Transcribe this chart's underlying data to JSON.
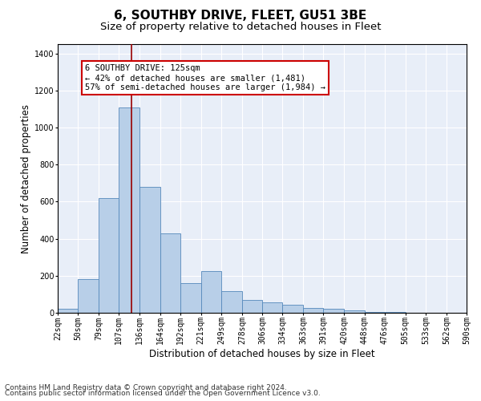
{
  "title1": "6, SOUTHBY DRIVE, FLEET, GU51 3BE",
  "title2": "Size of property relative to detached houses in Fleet",
  "xlabel": "Distribution of detached houses by size in Fleet",
  "ylabel": "Number of detached properties",
  "footnote1": "Contains HM Land Registry data © Crown copyright and database right 2024.",
  "footnote2": "Contains public sector information licensed under the Open Government Licence v3.0.",
  "annotation_line1": "6 SOUTHBY DRIVE: 125sqm",
  "annotation_line2": "← 42% of detached houses are smaller (1,481)",
  "annotation_line3": "57% of semi-detached houses are larger (1,984) →",
  "bar_heights": [
    20,
    180,
    620,
    1110,
    680,
    430,
    160,
    225,
    115,
    70,
    55,
    45,
    25,
    20,
    15,
    5,
    5,
    2,
    1,
    0
  ],
  "bin_edges": [
    22,
    50,
    79,
    107,
    136,
    164,
    192,
    221,
    249,
    278,
    306,
    334,
    363,
    391,
    420,
    448,
    476,
    505,
    533,
    562,
    590
  ],
  "bar_color": "#b8cfe8",
  "bar_edge_color": "#5588bb",
  "red_line_x": 125,
  "ylim": [
    0,
    1450
  ],
  "xlim": [
    22,
    590
  ],
  "yticks": [
    0,
    200,
    400,
    600,
    800,
    1000,
    1200,
    1400
  ],
  "xtick_labels": [
    "22sqm",
    "50sqm",
    "79sqm",
    "107sqm",
    "136sqm",
    "164sqm",
    "192sqm",
    "221sqm",
    "249sqm",
    "278sqm",
    "306sqm",
    "334sqm",
    "363sqm",
    "391sqm",
    "420sqm",
    "448sqm",
    "476sqm",
    "505sqm",
    "533sqm",
    "562sqm",
    "590sqm"
  ],
  "background_color": "#e8eef8",
  "grid_color": "#ffffff",
  "annotation_box_facecolor": "#ffffff",
  "annotation_box_edgecolor": "#cc0000",
  "title1_fontsize": 11,
  "title2_fontsize": 9.5,
  "axis_label_fontsize": 8.5,
  "tick_fontsize": 7,
  "annotation_fontsize": 7.5,
  "footnote_fontsize": 6.5
}
